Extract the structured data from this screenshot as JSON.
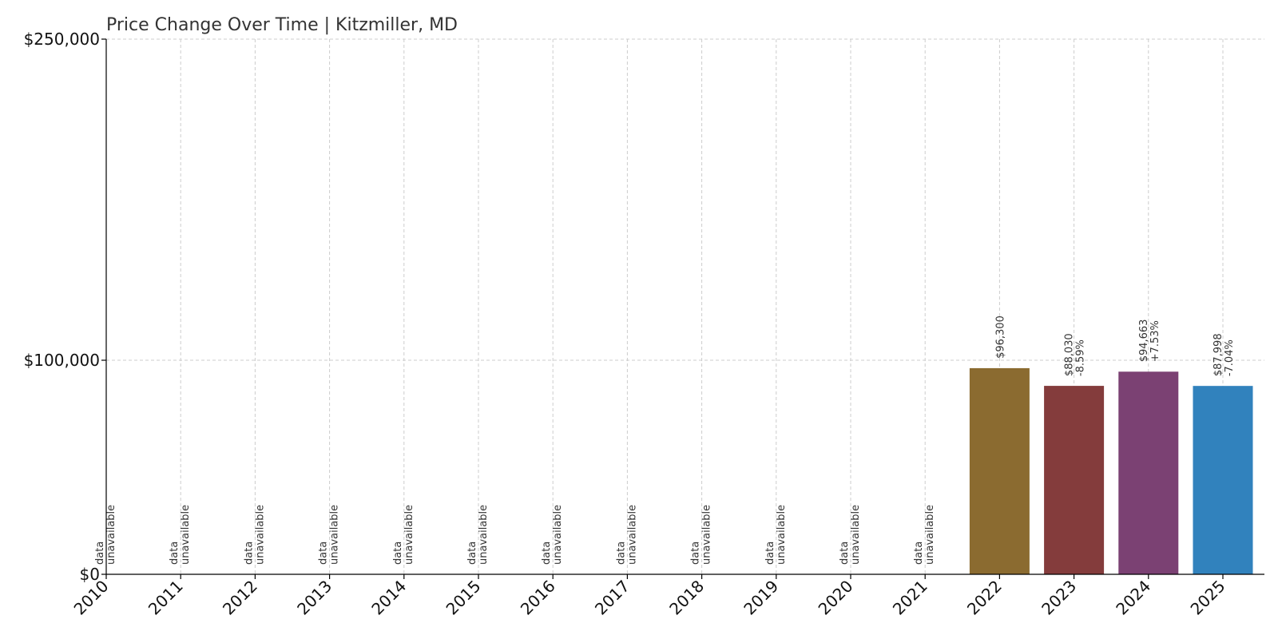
{
  "chart_data": {
    "type": "bar",
    "title": "Price Change Over Time | Kitzmiller, MD",
    "xlabel": "",
    "ylabel": "",
    "ylim": [
      0,
      250000
    ],
    "yticks": [
      {
        "value": 0,
        "label": "$0"
      },
      {
        "value": 100000,
        "label": "$100,000"
      },
      {
        "value": 250000,
        "label": "$250,000"
      }
    ],
    "grid": true,
    "categories": [
      "2010",
      "2011",
      "2012",
      "2013",
      "2014",
      "2015",
      "2016",
      "2017",
      "2018",
      "2019",
      "2020",
      "2021",
      "2022",
      "2023",
      "2024",
      "2025"
    ],
    "values": [
      null,
      null,
      null,
      null,
      null,
      null,
      null,
      null,
      null,
      null,
      null,
      null,
      96300,
      88030,
      94663,
      87998
    ],
    "value_labels": [
      "",
      "",
      "",
      "",
      "",
      "",
      "",
      "",
      "",
      "",
      "",
      "",
      "$96,300",
      "$88,030",
      "$94,663",
      "$87,998"
    ],
    "change_labels": [
      "",
      "",
      "",
      "",
      "",
      "",
      "",
      "",
      "",
      "",
      "",
      "",
      "",
      "-8.59%",
      "+7.53%",
      "-7.04%"
    ],
    "unavailable_label": [
      "data",
      "unavailable"
    ],
    "colors": [
      "",
      "",
      "",
      "",
      "",
      "",
      "",
      "",
      "",
      "",
      "",
      "",
      "#8b6b30",
      "#843c3c",
      "#7b4173",
      "#3182bd"
    ]
  }
}
